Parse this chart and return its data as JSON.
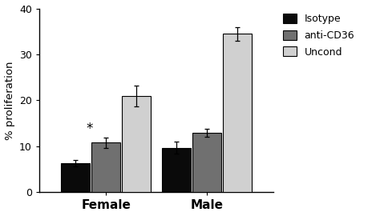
{
  "groups": [
    "Female",
    "Male"
  ],
  "conditions": [
    "Isotype",
    "anti-CD36",
    "Uncond"
  ],
  "colors": [
    "#0a0a0a",
    "#707070",
    "#d0d0d0"
  ],
  "values": {
    "Female": [
      6.4,
      10.8,
      21.0
    ],
    "Male": [
      9.7,
      13.0,
      34.5
    ]
  },
  "errors": {
    "Female": [
      0.7,
      1.1,
      2.3
    ],
    "Male": [
      1.3,
      0.9,
      1.5
    ]
  },
  "ylabel": "% proliferation",
  "ylim": [
    0,
    40
  ],
  "yticks": [
    0,
    10,
    20,
    30,
    40
  ],
  "legend_labels": [
    "Isotype",
    "anti-CD36",
    "Uncond"
  ],
  "star_group": "Female",
  "star_condition_index": 1,
  "bar_width": 0.18,
  "figsize": [
    4.74,
    2.7
  ],
  "dpi": 100,
  "group_centers": [
    0.3,
    0.9
  ]
}
